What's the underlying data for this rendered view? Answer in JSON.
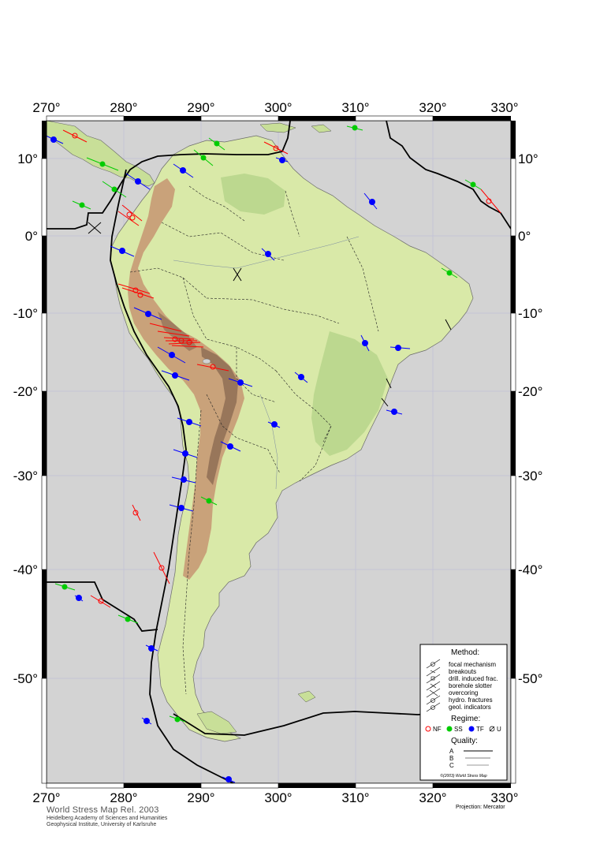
{
  "map": {
    "title": "World Stress Map Rel. 2003",
    "institution": "Heidelberg Academy of Sciences and Humanities",
    "institute": "Geophysical Institute, University of Karlsruhe",
    "projection": "Projection: Mercator",
    "longitude_labels": [
      "270°",
      "280°",
      "290°",
      "300°",
      "310°",
      "320°",
      "330°"
    ],
    "latitude_labels": [
      "10°",
      "0°",
      "-10°",
      "-20°",
      "-30°",
      "-40°",
      "-50°"
    ],
    "colors": {
      "ocean": "#d3d3d3",
      "lowland": "#d9e9a8",
      "upland": "#bcd88f",
      "highland": "#c9a27a",
      "peak": "#8f6e55",
      "NF": "#ff0000",
      "SS": "#00cc00",
      "TF": "#0000ff",
      "U": "#000000"
    }
  },
  "legend": {
    "method_title": "Method:",
    "methods": [
      "focal mechanism",
      "breakouts",
      "drill. induced frac.",
      "borehole slotter",
      "overcoring",
      "hydro. fractures",
      "geol. indicators"
    ],
    "regime_title": "Regime:",
    "regimes": [
      {
        "code": "NF",
        "color": "#ff0000",
        "icon": "open-circle-icon"
      },
      {
        "code": "SS",
        "color": "#00cc00",
        "icon": "half-filled-circle-icon"
      },
      {
        "code": "TF",
        "color": "#0000ff",
        "icon": "filled-circle-icon"
      },
      {
        "code": "U",
        "color": "#000000",
        "icon": "slashed-circle-icon"
      }
    ],
    "quality_title": "Quality:",
    "qualities": [
      "A",
      "B",
      "C"
    ],
    "copyright": "©(2003) World Stress Map"
  }
}
